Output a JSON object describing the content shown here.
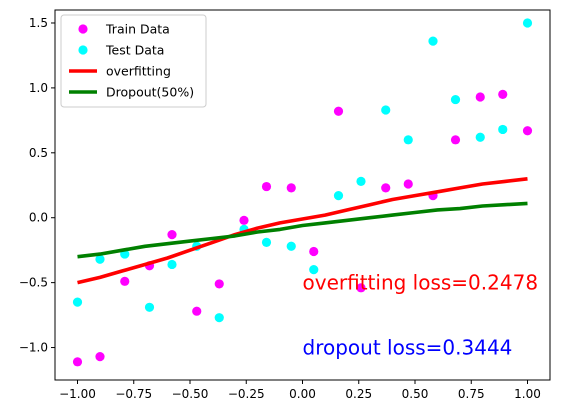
{
  "chart_data": {
    "type": "scatter",
    "title": "",
    "xlabel": "",
    "ylabel": "",
    "xlim": [
      -1.1,
      1.1
    ],
    "ylim": [
      -1.25,
      1.6
    ],
    "grid": false,
    "legend_position": "top-left",
    "x_ticks": [
      -1.0,
      -0.75,
      -0.5,
      -0.25,
      0.0,
      0.25,
      0.5,
      0.75,
      1.0
    ],
    "x_tick_labels": [
      "−1.00",
      "−0.75",
      "−0.50",
      "−0.25",
      "0.00",
      "0.25",
      "0.50",
      "0.75",
      "1.00"
    ],
    "y_ticks": [
      -1.0,
      -0.5,
      0.0,
      0.5,
      1.0,
      1.5
    ],
    "y_tick_labels": [
      "−1.0",
      "−0.5",
      "0.0",
      "0.5",
      "1.0",
      "1.5"
    ],
    "series": [
      {
        "name": "Train Data",
        "kind": "scatter",
        "color": "#ff00ff",
        "points": [
          [
            -1.0,
            -1.11
          ],
          [
            -0.9,
            -1.07
          ],
          [
            -0.79,
            -0.49
          ],
          [
            -0.68,
            -0.37
          ],
          [
            -0.58,
            -0.13
          ],
          [
            -0.47,
            -0.72
          ],
          [
            -0.37,
            -0.51
          ],
          [
            -0.26,
            -0.02
          ],
          [
            -0.16,
            0.24
          ],
          [
            -0.05,
            0.23
          ],
          [
            0.05,
            -0.26
          ],
          [
            0.16,
            0.82
          ],
          [
            0.26,
            -0.54
          ],
          [
            0.37,
            0.23
          ],
          [
            0.47,
            0.26
          ],
          [
            0.58,
            0.17
          ],
          [
            0.68,
            0.6
          ],
          [
            0.79,
            0.93
          ],
          [
            0.89,
            0.95
          ],
          [
            1.0,
            0.67
          ]
        ]
      },
      {
        "name": "Test Data",
        "kind": "scatter",
        "color": "#00ffff",
        "points": [
          [
            -1.0,
            -0.65
          ],
          [
            -0.9,
            -0.32
          ],
          [
            -0.79,
            -0.28
          ],
          [
            -0.68,
            -0.69
          ],
          [
            -0.58,
            -0.36
          ],
          [
            -0.47,
            -0.22
          ],
          [
            -0.37,
            -0.77
          ],
          [
            -0.26,
            -0.09
          ],
          [
            -0.16,
            -0.19
          ],
          [
            -0.05,
            -0.22
          ],
          [
            0.05,
            -0.4
          ],
          [
            0.16,
            0.17
          ],
          [
            0.26,
            0.28
          ],
          [
            0.37,
            0.83
          ],
          [
            0.47,
            0.6
          ],
          [
            0.58,
            1.36
          ],
          [
            0.68,
            0.91
          ],
          [
            0.79,
            0.62
          ],
          [
            0.89,
            0.68
          ],
          [
            1.0,
            1.5
          ]
        ]
      },
      {
        "name": "overfitting",
        "kind": "line",
        "color": "#ff0000",
        "points": [
          [
            -1.0,
            -0.5
          ],
          [
            -0.9,
            -0.46
          ],
          [
            -0.8,
            -0.41
          ],
          [
            -0.7,
            -0.36
          ],
          [
            -0.6,
            -0.31
          ],
          [
            -0.5,
            -0.25
          ],
          [
            -0.4,
            -0.19
          ],
          [
            -0.3,
            -0.13
          ],
          [
            -0.2,
            -0.08
          ],
          [
            -0.1,
            -0.04
          ],
          [
            0.0,
            -0.01
          ],
          [
            0.1,
            0.02
          ],
          [
            0.2,
            0.06
          ],
          [
            0.3,
            0.1
          ],
          [
            0.4,
            0.14
          ],
          [
            0.5,
            0.17
          ],
          [
            0.6,
            0.2
          ],
          [
            0.7,
            0.23
          ],
          [
            0.8,
            0.26
          ],
          [
            0.9,
            0.28
          ],
          [
            1.0,
            0.3
          ]
        ]
      },
      {
        "name": "Dropout(50%)",
        "kind": "line",
        "color": "#008000",
        "points": [
          [
            -1.0,
            -0.3
          ],
          [
            -0.9,
            -0.28
          ],
          [
            -0.8,
            -0.25
          ],
          [
            -0.7,
            -0.22
          ],
          [
            -0.6,
            -0.2
          ],
          [
            -0.5,
            -0.18
          ],
          [
            -0.4,
            -0.16
          ],
          [
            -0.3,
            -0.14
          ],
          [
            -0.2,
            -0.11
          ],
          [
            -0.1,
            -0.09
          ],
          [
            0.0,
            -0.06
          ],
          [
            0.1,
            -0.04
          ],
          [
            0.2,
            -0.02
          ],
          [
            0.3,
            0.0
          ],
          [
            0.4,
            0.02
          ],
          [
            0.5,
            0.04
          ],
          [
            0.6,
            0.06
          ],
          [
            0.7,
            0.07
          ],
          [
            0.8,
            0.09
          ],
          [
            0.9,
            0.1
          ],
          [
            1.0,
            0.11
          ]
        ]
      }
    ],
    "annotations": [
      {
        "text": "overfitting loss=0.2478",
        "x": 0.0,
        "y": -0.5,
        "color": "#ff0000"
      },
      {
        "text": "dropout loss=0.3444",
        "x": 0.0,
        "y": -1.0,
        "color": "#0000ff"
      }
    ]
  }
}
